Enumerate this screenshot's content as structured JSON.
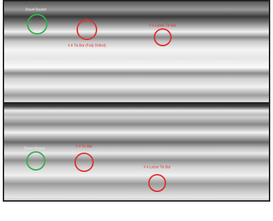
{
  "top_panel": {
    "annotations": [
      {
        "label": "Dowel Basket"
      },
      {
        "label": "# 4 Tie Bar (Fully Drilled)"
      },
      {
        "label": "# 4 Loose Tie Bar"
      }
    ]
  },
  "bottom_panel": {
    "annotations": [
      {
        "label": "Dowel Basket"
      },
      {
        "label": "# 4 Tie Bar"
      },
      {
        "label": "# 4 Loose Tie Bar"
      }
    ]
  }
}
